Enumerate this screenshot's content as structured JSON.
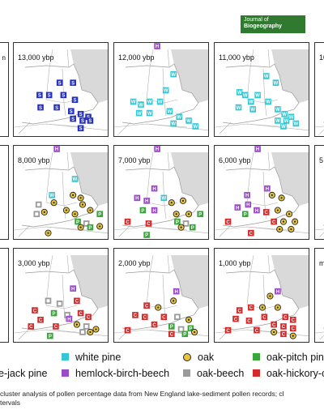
{
  "journal_badge": {
    "line1": "Journal of",
    "line2": "Biogeography"
  },
  "legend_small": {
    "label_fragment": "n"
  },
  "panels": [
    {
      "id": "p13000",
      "label": "13,000 ybp",
      "marker": "S",
      "points": [
        [
          0.48,
          0.42
        ],
        [
          0.62,
          0.42
        ],
        [
          0.27,
          0.55
        ],
        [
          0.37,
          0.55
        ],
        [
          0.52,
          0.55
        ],
        [
          0.64,
          0.6
        ],
        [
          0.28,
          0.68
        ],
        [
          0.45,
          0.68
        ],
        [
          0.6,
          0.72
        ],
        [
          0.7,
          0.75
        ],
        [
          0.78,
          0.78
        ],
        [
          0.62,
          0.8
        ],
        [
          0.72,
          0.82
        ],
        [
          0.8,
          0.82
        ],
        [
          0.7,
          0.9
        ]
      ]
    },
    {
      "id": "p12000",
      "label": "12,000 ybp",
      "top": "H",
      "marker": "W",
      "points": [
        [
          0.62,
          0.33
        ],
        [
          0.54,
          0.5
        ],
        [
          0.2,
          0.62
        ],
        [
          0.28,
          0.65
        ],
        [
          0.37,
          0.62
        ],
        [
          0.48,
          0.62
        ],
        [
          0.26,
          0.74
        ],
        [
          0.37,
          0.74
        ],
        [
          0.58,
          0.72
        ],
        [
          0.68,
          0.78
        ],
        [
          0.78,
          0.82
        ],
        [
          0.62,
          0.85
        ],
        [
          0.85,
          0.88
        ]
      ]
    },
    {
      "id": "p11000",
      "label": "11,000 ybp",
      "marker": "W",
      "points": [
        [
          0.54,
          0.35
        ],
        [
          0.64,
          0.42
        ],
        [
          0.26,
          0.52
        ],
        [
          0.32,
          0.55
        ],
        [
          0.45,
          0.55
        ],
        [
          0.56,
          0.62
        ],
        [
          0.38,
          0.62
        ],
        [
          0.25,
          0.68
        ],
        [
          0.4,
          0.7
        ],
        [
          0.66,
          0.7
        ],
        [
          0.73,
          0.75
        ],
        [
          0.8,
          0.78
        ],
        [
          0.66,
          0.82
        ],
        [
          0.75,
          0.82
        ],
        [
          0.85,
          0.85
        ],
        [
          0.72,
          0.88
        ]
      ]
    },
    {
      "id": "p10000",
      "label": "10",
      "points": []
    },
    {
      "id": "p8000",
      "label": "8,000 ybp",
      "top": "H",
      "points": [
        [
          0.64,
          0.35,
          "W"
        ],
        [
          0.4,
          0.52,
          "W"
        ],
        [
          0.26,
          0.62,
          "G"
        ],
        [
          0.42,
          0.6,
          "O"
        ],
        [
          0.62,
          0.52,
          "O"
        ],
        [
          0.7,
          0.55,
          "O"
        ],
        [
          0.24,
          0.72,
          "G"
        ],
        [
          0.32,
          0.7,
          "O"
        ],
        [
          0.55,
          0.68,
          "O"
        ],
        [
          0.64,
          0.72,
          "O"
        ],
        [
          0.72,
          0.62,
          "O"
        ],
        [
          0.8,
          0.68,
          "O"
        ],
        [
          0.9,
          0.72,
          "P"
        ],
        [
          0.67,
          0.8,
          "P"
        ],
        [
          0.76,
          0.82,
          "G"
        ],
        [
          0.7,
          0.86,
          "O"
        ],
        [
          0.8,
          0.86,
          "P"
        ],
        [
          0.36,
          0.92,
          "O"
        ],
        [
          0.9,
          0.85,
          "O"
        ]
      ]
    },
    {
      "id": "p7000",
      "label": "7,000 ybp",
      "top": "H",
      "points": [
        [
          0.42,
          0.45,
          "H"
        ],
        [
          0.24,
          0.55,
          "H"
        ],
        [
          0.34,
          0.58,
          "H"
        ],
        [
          0.52,
          0.55,
          "W"
        ],
        [
          0.6,
          0.6,
          "O"
        ],
        [
          0.72,
          0.58,
          "O"
        ],
        [
          0.3,
          0.68,
          "P"
        ],
        [
          0.42,
          0.68,
          "H"
        ],
        [
          0.65,
          0.72,
          "O"
        ],
        [
          0.78,
          0.72,
          "O"
        ],
        [
          0.9,
          0.72,
          "P"
        ],
        [
          0.14,
          0.8,
          "C"
        ],
        [
          0.36,
          0.82,
          "C"
        ],
        [
          0.66,
          0.8,
          "P"
        ],
        [
          0.75,
          0.82,
          "G"
        ],
        [
          0.7,
          0.86,
          "O"
        ],
        [
          0.82,
          0.86,
          "P"
        ],
        [
          0.34,
          0.94,
          "P"
        ]
      ]
    },
    {
      "id": "p6000",
      "label": "6,000 ybp",
      "top": "H",
      "points": [
        [
          0.55,
          0.45,
          "H"
        ],
        [
          0.34,
          0.52,
          "H"
        ],
        [
          0.24,
          0.65,
          "H"
        ],
        [
          0.35,
          0.62,
          "H"
        ],
        [
          0.6,
          0.52,
          "O"
        ],
        [
          0.7,
          0.55,
          "O"
        ],
        [
          0.32,
          0.72,
          "P"
        ],
        [
          0.44,
          0.68,
          "H"
        ],
        [
          0.66,
          0.68,
          "O"
        ],
        [
          0.78,
          0.72,
          "O"
        ],
        [
          0.54,
          0.7,
          "C"
        ],
        [
          0.14,
          0.8,
          "C"
        ],
        [
          0.62,
          0.8,
          "C"
        ],
        [
          0.72,
          0.8,
          "O"
        ],
        [
          0.84,
          0.8,
          "O"
        ],
        [
          0.68,
          0.88,
          "O"
        ],
        [
          0.8,
          0.88,
          "O"
        ],
        [
          0.38,
          0.92,
          "C"
        ]
      ]
    },
    {
      "id": "p5000",
      "label": "5",
      "points": []
    },
    {
      "id": "p3000",
      "label": "3,000 ybp",
      "points": [
        [
          0.62,
          0.42,
          "H"
        ],
        [
          0.36,
          0.55,
          "G"
        ],
        [
          0.48,
          0.58,
          "G"
        ],
        [
          0.66,
          0.55,
          "C"
        ],
        [
          0.22,
          0.65,
          "C"
        ],
        [
          0.42,
          0.68,
          "P"
        ],
        [
          0.56,
          0.7,
          "G"
        ],
        [
          0.7,
          0.68,
          "C"
        ],
        [
          0.28,
          0.75,
          "C"
        ],
        [
          0.58,
          0.74,
          "H"
        ],
        [
          0.78,
          0.72,
          "C"
        ],
        [
          0.66,
          0.8,
          "O"
        ],
        [
          0.76,
          0.82,
          "G"
        ],
        [
          0.18,
          0.82,
          "C"
        ],
        [
          0.44,
          0.82,
          "C"
        ],
        [
          0.86,
          0.85,
          "O"
        ],
        [
          0.72,
          0.88,
          "G"
        ],
        [
          0.8,
          0.88,
          "O"
        ],
        [
          0.38,
          0.92,
          "P"
        ]
      ]
    },
    {
      "id": "p2000",
      "label": "2,000 ybp",
      "points": [
        [
          0.65,
          0.45,
          "H"
        ],
        [
          0.62,
          0.55,
          "O"
        ],
        [
          0.34,
          0.6,
          "C"
        ],
        [
          0.46,
          0.62,
          "O"
        ],
        [
          0.22,
          0.7,
          "C"
        ],
        [
          0.32,
          0.72,
          "C"
        ],
        [
          0.52,
          0.72,
          "C"
        ],
        [
          0.66,
          0.72,
          "G"
        ],
        [
          0.78,
          0.75,
          "O"
        ],
        [
          0.42,
          0.8,
          "C"
        ],
        [
          0.6,
          0.82,
          "P"
        ],
        [
          0.7,
          0.85,
          "G"
        ],
        [
          0.8,
          0.84,
          "P"
        ],
        [
          0.14,
          0.86,
          "C"
        ],
        [
          0.6,
          0.9,
          "C"
        ],
        [
          0.74,
          0.9,
          "P"
        ],
        [
          0.84,
          0.88,
          "O"
        ]
      ]
    },
    {
      "id": "p1000",
      "label": "1,000 ybp",
      "points": [
        [
          0.66,
          0.45,
          "H"
        ],
        [
          0.58,
          0.5,
          "O"
        ],
        [
          0.26,
          0.65,
          "C"
        ],
        [
          0.38,
          0.62,
          "C"
        ],
        [
          0.5,
          0.62,
          "O"
        ],
        [
          0.66,
          0.62,
          "O"
        ],
        [
          0.22,
          0.74,
          "C"
        ],
        [
          0.36,
          0.76,
          "C"
        ],
        [
          0.52,
          0.72,
          "C"
        ],
        [
          0.74,
          0.72,
          "C"
        ],
        [
          0.82,
          0.75,
          "C"
        ],
        [
          0.62,
          0.8,
          "C"
        ],
        [
          0.72,
          0.82,
          "C"
        ],
        [
          0.82,
          0.84,
          "C"
        ],
        [
          0.14,
          0.86,
          "C"
        ],
        [
          0.44,
          0.86,
          "C"
        ],
        [
          0.62,
          0.88,
          "O"
        ],
        [
          0.72,
          0.9,
          "C"
        ],
        [
          0.82,
          0.92,
          "O"
        ]
      ]
    },
    {
      "id": "pmod",
      "label": "m",
      "points": []
    }
  ],
  "legend": [
    {
      "key": "W",
      "label": "white pine",
      "color": "#33c7d6",
      "style": "W"
    },
    {
      "key": "O",
      "label": "oak",
      "color": "#e8c53a",
      "style": "O"
    },
    {
      "key": "P",
      "label": "oak-pitch pine",
      "color": "#3aa63a",
      "style": "P"
    },
    {
      "key": "H",
      "label": "hemlock-birch-beech",
      "color": "#9b4bc9",
      "style": "H"
    },
    {
      "key": "G",
      "label": "oak-beech",
      "color": "#9a9a9a",
      "style": "G"
    },
    {
      "key": "C",
      "label": "oak-hickory-c",
      "color": "#d52a2a",
      "style": "C"
    },
    {
      "key": "J",
      "label": "e-jack pine",
      "color": "#2c2ebf",
      "style": "S"
    }
  ],
  "caption": {
    "line1": "cluster analysis of pollen percentage data from New England lake-sediment pollen records; cl",
    "line2": "tervals"
  },
  "colors": {
    "spruce": "#2530c0",
    "white_pine": "#33c7d6",
    "hemlock": "#9b4bc9",
    "oak": "#e8c53a",
    "oak_beech": "#9a9a9a",
    "pitch_pine": "#3aa63a",
    "hickory": "#d52a2a",
    "land": "#ffffff",
    "land_dark": "#d9d9d9",
    "border": "#9a9a9a",
    "badge": "#2f7a2e"
  }
}
